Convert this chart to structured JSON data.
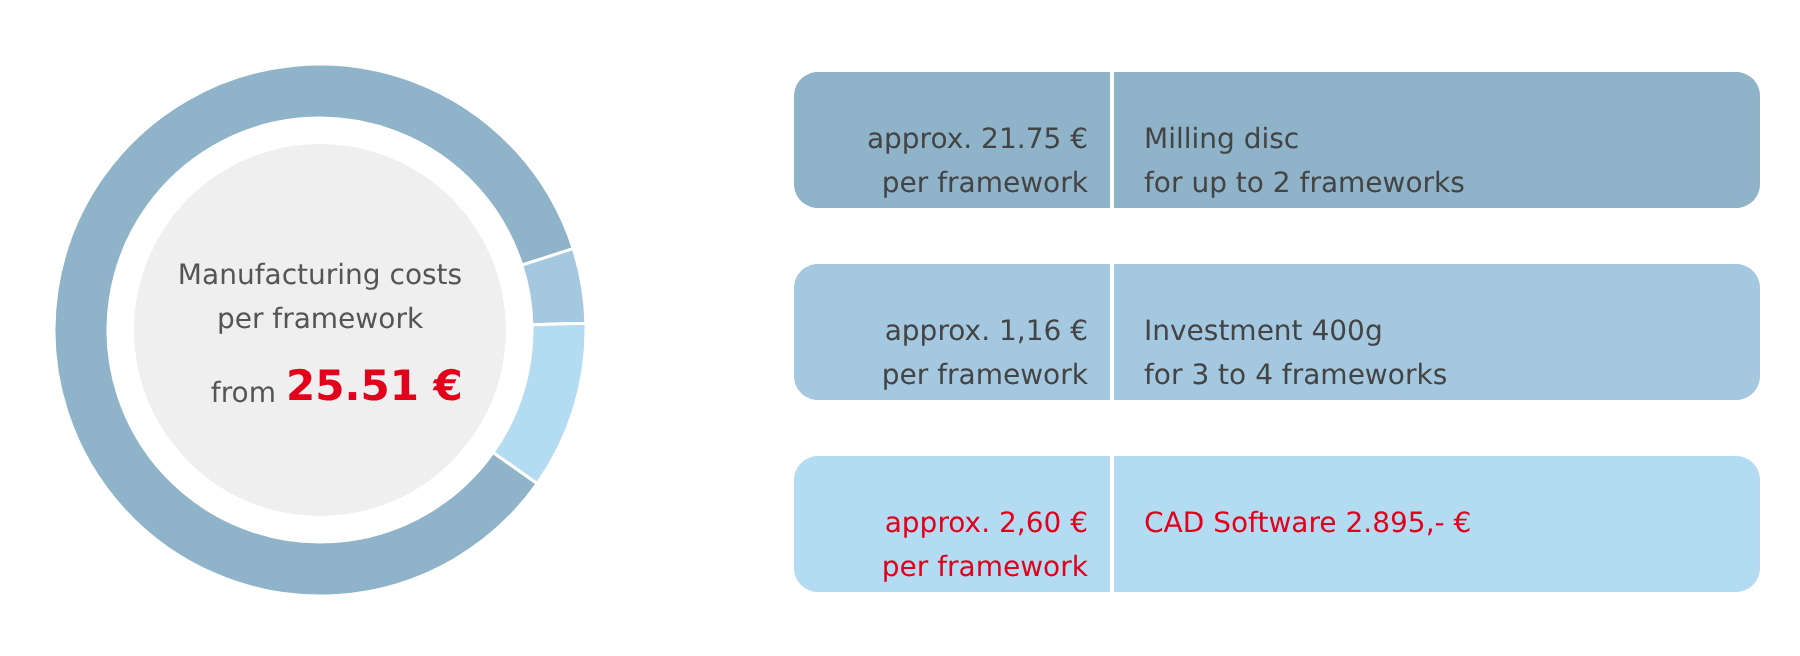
{
  "chart_data": {
    "type": "donut",
    "categories": [
      null,
      null,
      null
    ],
    "values": [
      85.26,
      4.55,
      10.19
    ],
    "colors": [
      "#8fb3c9",
      "#a3c8df",
      "#b3dcf2"
    ],
    "annotations": [
      "Manufacturing costs\nper framework",
      "from 25.51 €",
      "approx. 21.75 €\nper framework",
      "approx. 1,16 €\nper framework",
      "approx. 2,60 €\nper framework",
      "Milling disc\nfor up to 2 frameworks",
      "Investment 400g\nfor 3 to 4 frameworks",
      "CAD Software 2.895,- €"
    ]
  }
}
